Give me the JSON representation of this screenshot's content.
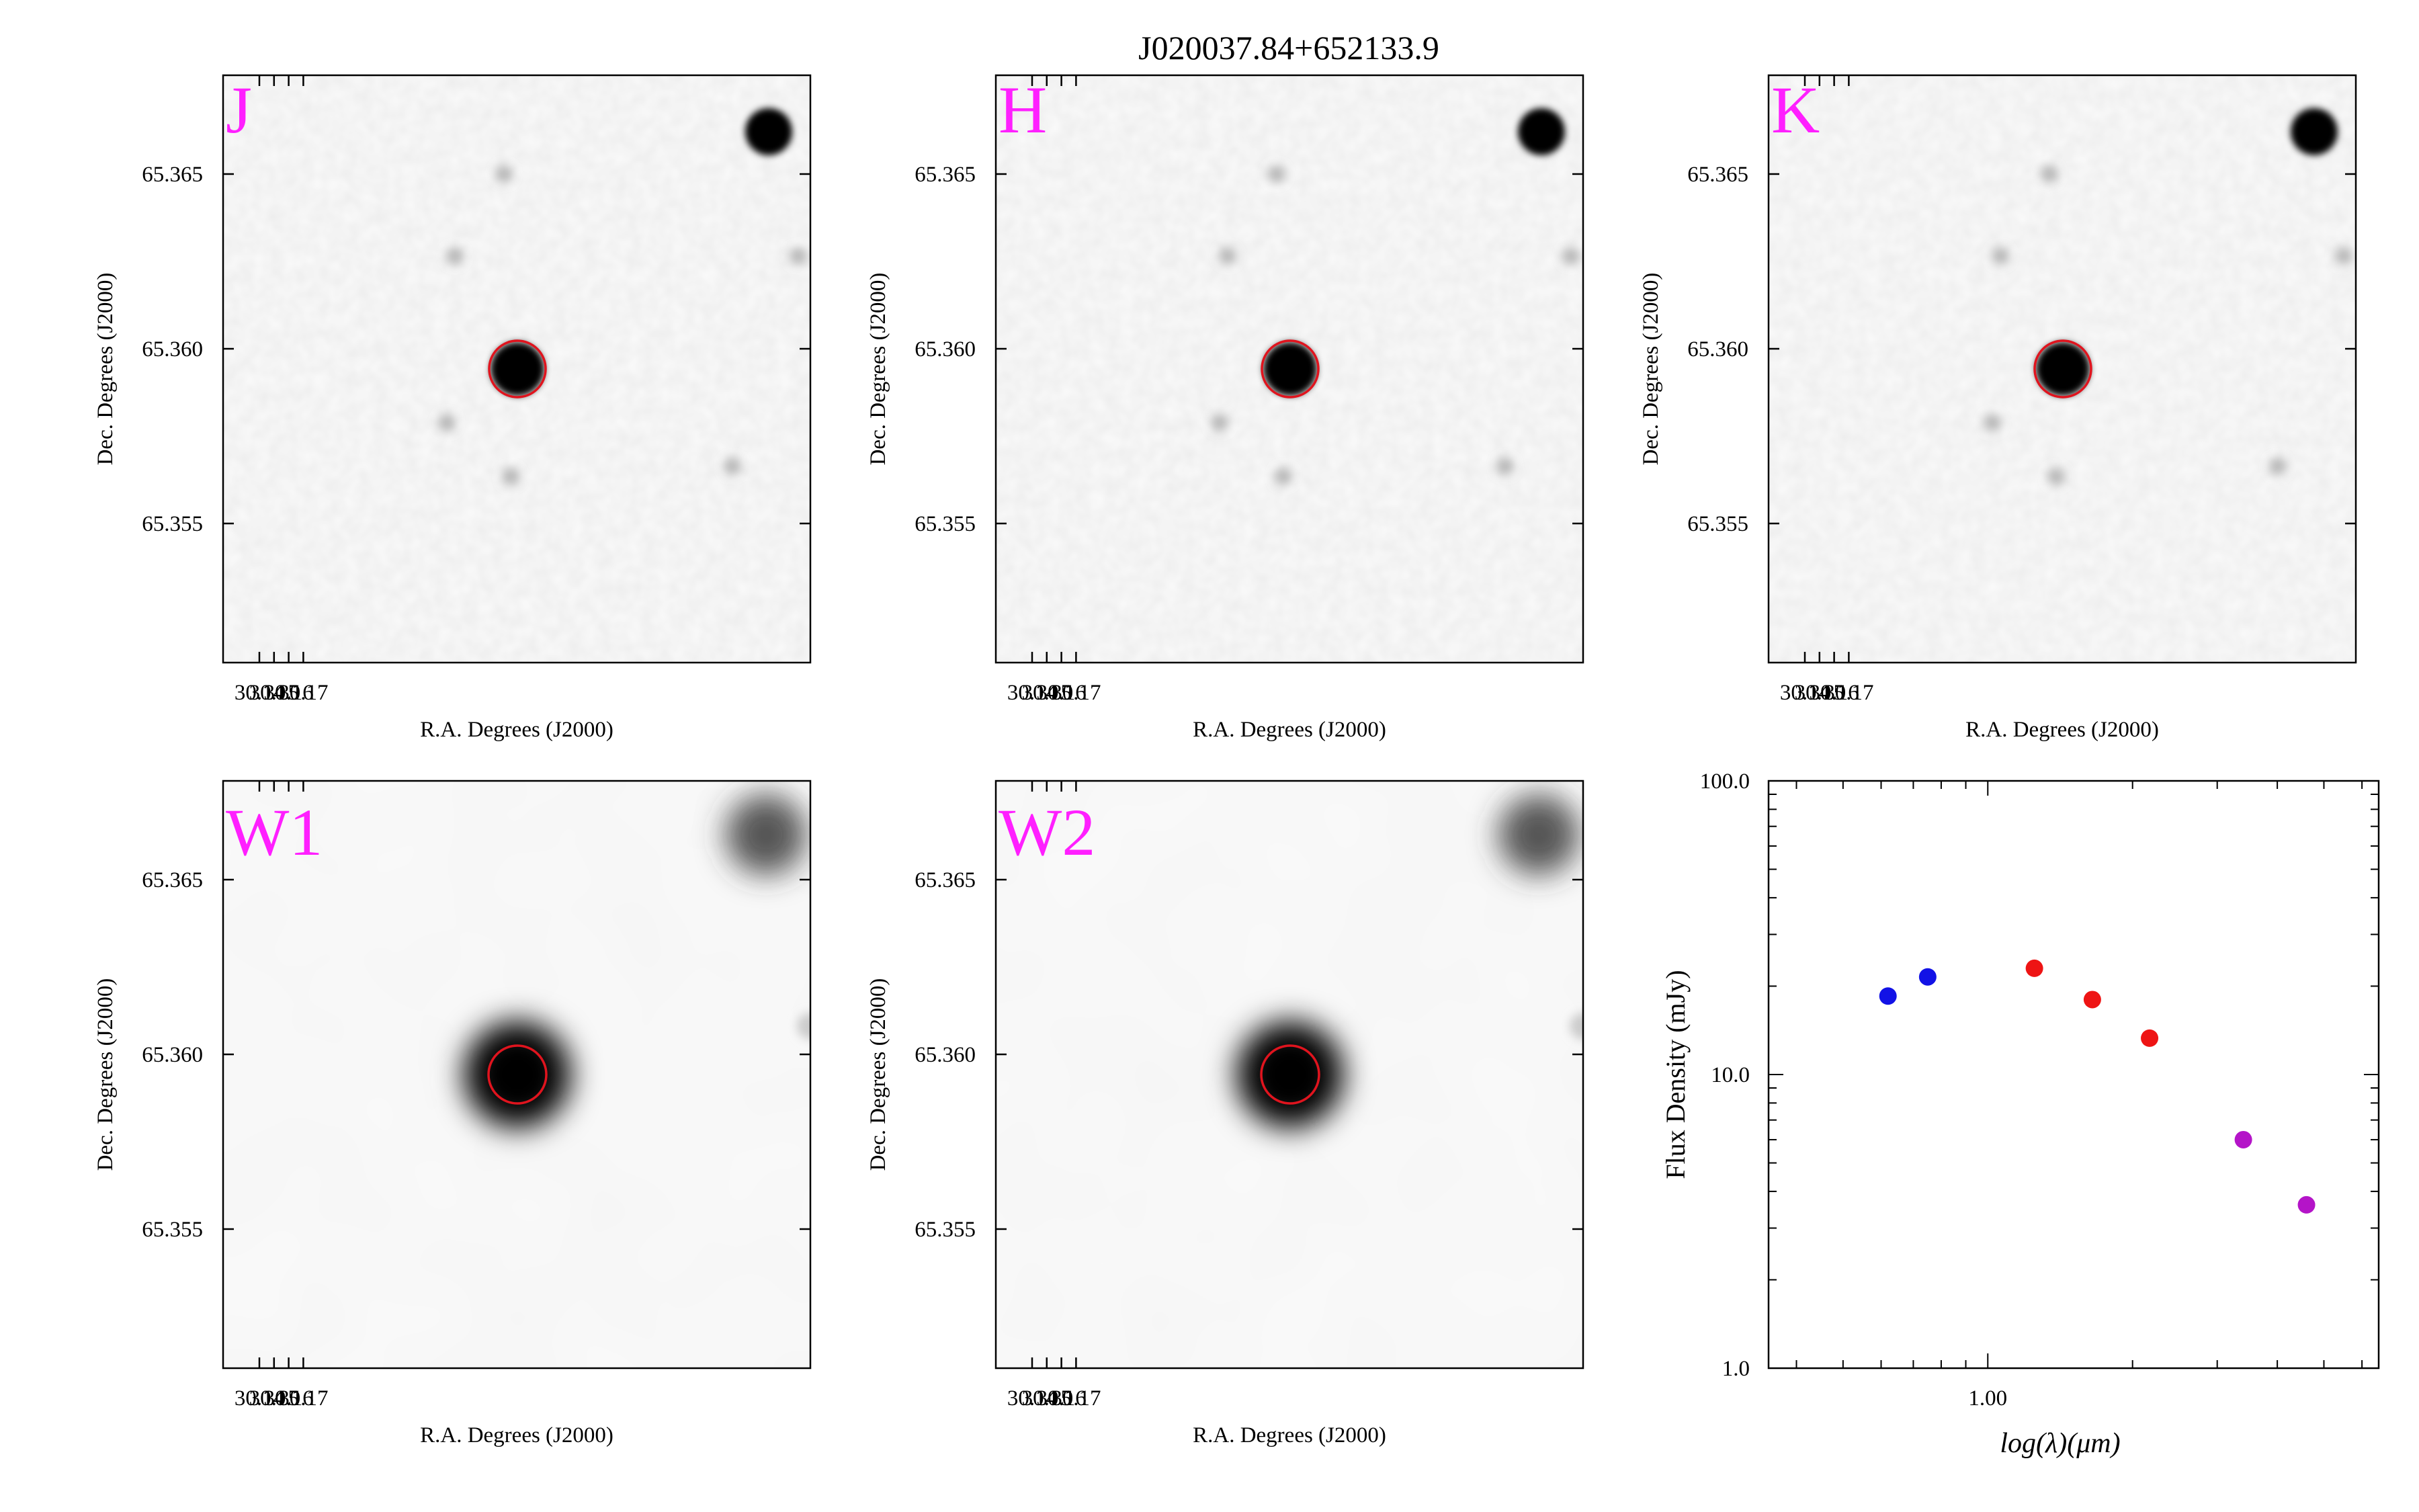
{
  "title": "J020037.84+652133.9",
  "colors": {
    "band_label": "#ff1fff",
    "aperture": "#e0141e",
    "source": "#000000",
    "sed_2mass_optical": "#1212e6",
    "sed_2mass": "#ee1414",
    "sed_wise": "#b414c8"
  },
  "cutouts": [
    {
      "band": "J",
      "style": "sharp",
      "xlabel": "R.A. Degrees (J2000)",
      "ylabel": "Dec. Degrees (J2000)",
      "xticks": [
        "30.14",
        "30.15",
        "30.16",
        "30.17"
      ],
      "yticks": [
        "65.365",
        "65.360",
        "65.355"
      ]
    },
    {
      "band": "H",
      "style": "sharp",
      "xlabel": "R.A. Degrees (J2000)",
      "ylabel": "Dec. Degrees (J2000)",
      "xticks": [
        "30.14",
        "30.15",
        "30.16",
        "30.17"
      ],
      "yticks": [
        "65.365",
        "65.360",
        "65.355"
      ]
    },
    {
      "band": "K",
      "style": "sharp",
      "xlabel": "R.A. Degrees (J2000)",
      "ylabel": "Dec. Degrees (J2000)",
      "xticks": [
        "30.14",
        "30.15",
        "30.16",
        "30.17"
      ],
      "yticks": [
        "65.365",
        "65.360",
        "65.355"
      ]
    },
    {
      "band": "W1",
      "style": "wide",
      "xlabel": "R.A. Degrees (J2000)",
      "ylabel": "Dec. Degrees (J2000)",
      "xticks": [
        "30.14",
        "30.15",
        "30.16",
        "30.17"
      ],
      "yticks": [
        "65.365",
        "65.360",
        "65.355"
      ]
    },
    {
      "band": "W2",
      "style": "wide",
      "xlabel": "R.A. Degrees (J2000)",
      "ylabel": "Dec. Degrees (J2000)",
      "xticks": [
        "30.14",
        "30.15",
        "30.16",
        "30.17"
      ],
      "yticks": [
        "65.365",
        "65.360",
        "65.355"
      ]
    }
  ],
  "chart_data": {
    "type": "scatter",
    "xlabel": "log(λ)(μm)",
    "ylabel": "Flux Density (mJy)",
    "x_scale": "log",
    "y_scale": "log",
    "xlim": [
      0.35,
      6.5
    ],
    "ylim": [
      1.0,
      100.0
    ],
    "xticks": [
      {
        "value": 1.0,
        "label": "1.00"
      }
    ],
    "yticks": [
      {
        "value": 1.0,
        "label": "1.0"
      },
      {
        "value": 10.0,
        "label": "10.0"
      },
      {
        "value": 100.0,
        "label": "100.0"
      }
    ],
    "series": [
      {
        "color": "#1212e6",
        "points": [
          {
            "x": 0.62,
            "y": 18.5
          },
          {
            "x": 0.75,
            "y": 21.5
          }
        ]
      },
      {
        "color": "#ee1414",
        "points": [
          {
            "x": 1.25,
            "y": 23.0
          },
          {
            "x": 1.65,
            "y": 18.0
          },
          {
            "x": 2.17,
            "y": 13.3
          }
        ]
      },
      {
        "color": "#b414c8",
        "points": [
          {
            "x": 3.4,
            "y": 6.0
          },
          {
            "x": 4.6,
            "y": 3.6
          }
        ]
      }
    ]
  }
}
